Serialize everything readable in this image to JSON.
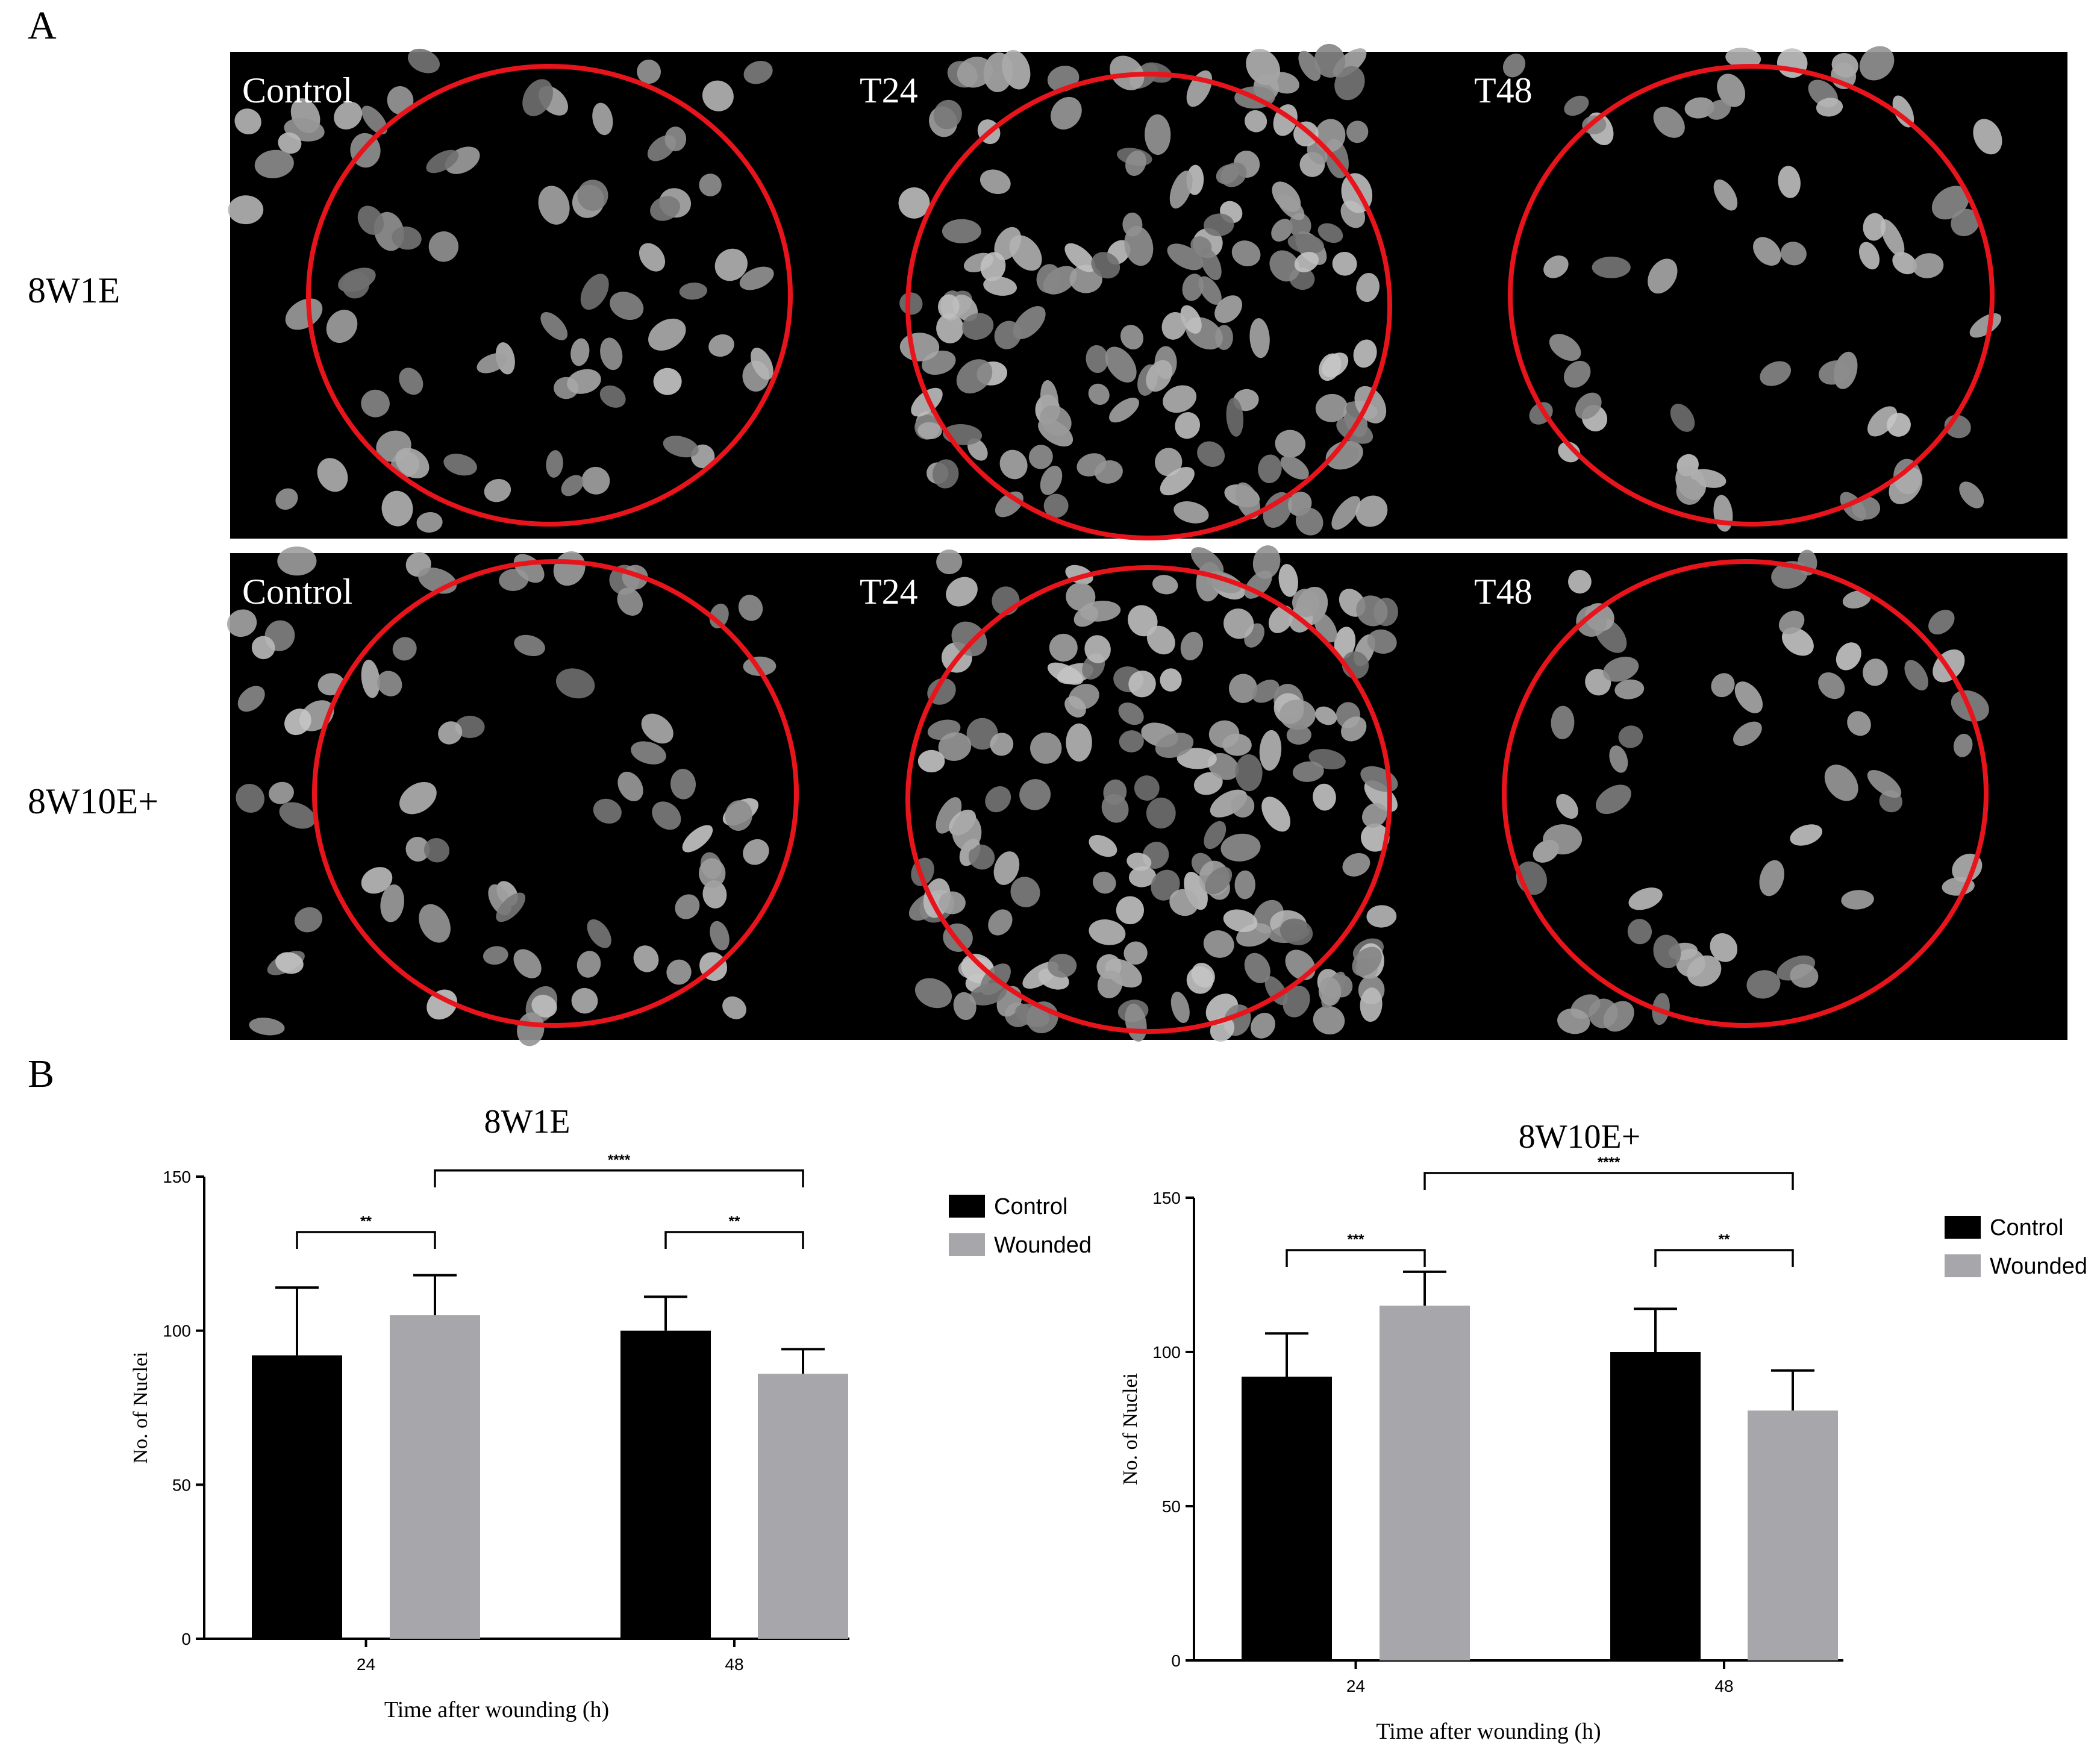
{
  "panel_a": {
    "letter": "A",
    "rows": [
      {
        "label": "8W1E",
        "panels": [
          "Control",
          "T24",
          "T48"
        ]
      },
      {
        "label": "8W10E+",
        "panels": [
          "Control",
          "T24",
          "T48"
        ]
      }
    ]
  },
  "panel_b": {
    "letter": "B"
  },
  "colors": {
    "control": "#000000",
    "wounded": "#a7a6ab",
    "circle": "#e8141c"
  },
  "chart_data": [
    {
      "type": "bar",
      "title": "8W1E",
      "xlabel": "Time after wounding (h)",
      "ylabel": "No. of Nuclei",
      "ylim": [
        0,
        150
      ],
      "yticks": [
        "0",
        "50",
        "100",
        "150"
      ],
      "categories": [
        "24",
        "48"
      ],
      "series": [
        {
          "name": "Control",
          "values": [
            92,
            100
          ],
          "errors": [
            22,
            11
          ]
        },
        {
          "name": "Wounded",
          "values": [
            105,
            86
          ],
          "errors": [
            13,
            8
          ]
        }
      ],
      "significance": [
        {
          "from": [
            0,
            0
          ],
          "to": [
            0,
            1
          ],
          "label": "**",
          "level": 132
        },
        {
          "from": [
            1,
            0
          ],
          "to": [
            1,
            1
          ],
          "label": "**",
          "level": 132
        },
        {
          "from": [
            0,
            1
          ],
          "to": [
            1,
            1
          ],
          "label": "****",
          "level": 152
        }
      ],
      "legend": "top-right"
    },
    {
      "type": "bar",
      "title": "8W10E+",
      "xlabel": "Time after wounding (h)",
      "ylabel": "No. of Nuclei",
      "ylim": [
        0,
        150
      ],
      "yticks": [
        "0",
        "50",
        "100",
        "150"
      ],
      "categories": [
        "24",
        "48"
      ],
      "series": [
        {
          "name": "Control",
          "values": [
            92,
            100
          ],
          "errors": [
            14,
            14
          ]
        },
        {
          "name": "Wounded",
          "values": [
            115,
            81
          ],
          "errors": [
            11,
            13
          ]
        }
      ],
      "significance": [
        {
          "from": [
            0,
            0
          ],
          "to": [
            0,
            1
          ],
          "label": "***",
          "level": 133
        },
        {
          "from": [
            1,
            0
          ],
          "to": [
            1,
            1
          ],
          "label": "**",
          "level": 133
        },
        {
          "from": [
            0,
            1
          ],
          "to": [
            1,
            1
          ],
          "label": "****",
          "level": 158
        }
      ],
      "legend": "top-right"
    }
  ]
}
